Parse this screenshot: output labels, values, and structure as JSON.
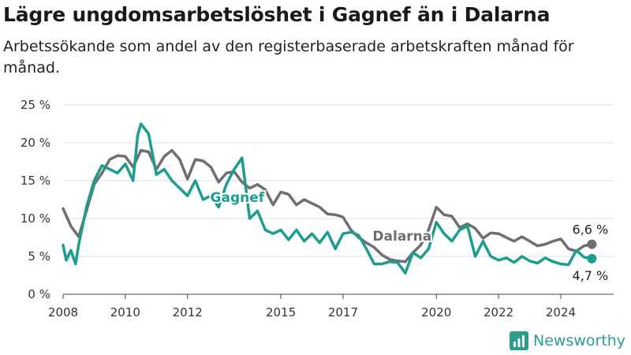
{
  "title": "Lägre ungdomsarbetslöshet i Gagnef än i Dalarna",
  "subtitle": "Arbetssökande som andel av den registerbaserade arbetskraften månad för månad.",
  "brand": "Newsworthy",
  "chart_data": {
    "type": "line",
    "ylim": [
      0,
      25
    ],
    "yticks": [
      0,
      5,
      10,
      15,
      20,
      25
    ],
    "ytick_labels": [
      "0 %",
      "5 %",
      "10 %",
      "15 %",
      "20 %",
      "25 %"
    ],
    "xlim": [
      2008,
      2025.7
    ],
    "xticks": [
      2008,
      2010,
      2012,
      2015,
      2017,
      2020,
      2022,
      2024
    ],
    "xtick_labels": [
      "2008",
      "2010",
      "2012",
      "2015",
      "2017",
      "2020",
      "2022",
      "2024"
    ],
    "grid": true,
    "series": [
      {
        "name": "Dalarna",
        "color": "#6f6e73",
        "end_label": "6,6 %",
        "x": [
          2008.0,
          2008.25,
          2008.5,
          2008.75,
          2009.0,
          2009.25,
          2009.5,
          2009.75,
          2010.0,
          2010.25,
          2010.5,
          2010.75,
          2011.0,
          2011.25,
          2011.5,
          2011.75,
          2012.0,
          2012.25,
          2012.5,
          2012.75,
          2013.0,
          2013.25,
          2013.5,
          2013.75,
          2014.0,
          2014.25,
          2014.5,
          2014.75,
          2015.0,
          2015.25,
          2015.5,
          2015.75,
          2016.0,
          2016.25,
          2016.5,
          2016.75,
          2017.0,
          2017.25,
          2017.5,
          2017.75,
          2018.0,
          2018.25,
          2018.5,
          2018.75,
          2019.0,
          2019.25,
          2019.5,
          2019.75,
          2020.0,
          2020.25,
          2020.5,
          2020.75,
          2021.0,
          2021.25,
          2021.5,
          2021.75,
          2022.0,
          2022.25,
          2022.5,
          2022.75,
          2023.0,
          2023.25,
          2023.5,
          2023.75,
          2024.0,
          2024.25,
          2024.5,
          2024.75,
          2025.0
        ],
        "values": [
          11.3,
          9.0,
          7.6,
          11.0,
          14.5,
          16.0,
          17.8,
          18.3,
          18.2,
          16.8,
          19.0,
          18.8,
          16.5,
          18.2,
          19.0,
          17.8,
          15.2,
          17.8,
          17.6,
          16.8,
          14.8,
          16.0,
          16.2,
          14.8,
          14.0,
          14.5,
          13.8,
          11.8,
          13.5,
          13.2,
          11.8,
          12.5,
          12.0,
          11.5,
          10.6,
          10.5,
          10.2,
          8.5,
          7.5,
          6.8,
          6.2,
          5.2,
          4.6,
          4.4,
          4.3,
          5.5,
          6.5,
          8.5,
          11.5,
          10.5,
          10.3,
          8.8,
          9.3,
          8.7,
          7.4,
          8.1,
          8.0,
          7.5,
          7.0,
          7.6,
          7.0,
          6.4,
          6.6,
          7.0,
          7.3,
          6.0,
          5.7,
          6.4,
          6.6
        ]
      },
      {
        "name": "Gagnef",
        "color": "#1b9e8e",
        "end_label": "4,7 %",
        "x": [
          2008.0,
          2008.1,
          2008.25,
          2008.4,
          2008.5,
          2008.75,
          2009.0,
          2009.25,
          2009.5,
          2009.75,
          2010.0,
          2010.25,
          2010.4,
          2010.5,
          2010.75,
          2011.0,
          2011.25,
          2011.5,
          2011.75,
          2012.0,
          2012.25,
          2012.5,
          2012.75,
          2013.0,
          2013.25,
          2013.5,
          2013.75,
          2014.0,
          2014.25,
          2014.5,
          2014.75,
          2015.0,
          2015.25,
          2015.5,
          2015.75,
          2016.0,
          2016.25,
          2016.5,
          2016.75,
          2017.0,
          2017.25,
          2017.5,
          2017.75,
          2018.0,
          2018.25,
          2018.5,
          2018.75,
          2019.0,
          2019.25,
          2019.5,
          2019.75,
          2020.0,
          2020.25,
          2020.5,
          2020.75,
          2021.0,
          2021.25,
          2021.5,
          2021.75,
          2022.0,
          2022.25,
          2022.5,
          2022.75,
          2023.0,
          2023.25,
          2023.5,
          2023.75,
          2024.0,
          2024.25,
          2024.5,
          2024.75,
          2025.0
        ],
        "values": [
          6.5,
          4.5,
          5.8,
          4.0,
          6.5,
          11.5,
          15.0,
          17.0,
          16.5,
          16.0,
          17.2,
          15.0,
          21.0,
          22.5,
          21.2,
          15.8,
          16.5,
          15.0,
          14.0,
          13.0,
          15.0,
          12.5,
          13.0,
          11.5,
          14.5,
          16.5,
          18.0,
          10.0,
          11.0,
          8.5,
          8.0,
          8.5,
          7.2,
          8.5,
          7.0,
          8.0,
          6.8,
          8.2,
          6.0,
          8.0,
          8.2,
          7.8,
          6.0,
          4.0,
          4.0,
          4.3,
          4.2,
          2.8,
          5.5,
          4.8,
          6.0,
          9.5,
          8.0,
          7.0,
          8.5,
          9.0,
          5.0,
          7.0,
          5.0,
          4.5,
          4.8,
          4.2,
          5.0,
          4.4,
          4.1,
          4.8,
          4.3,
          4.0,
          3.9,
          5.8,
          4.9,
          4.7
        ]
      }
    ],
    "annotations": [
      {
        "text": "Gagnef",
        "series": "Gagnef"
      },
      {
        "text": "Dalarna",
        "series": "Dalarna"
      }
    ]
  }
}
